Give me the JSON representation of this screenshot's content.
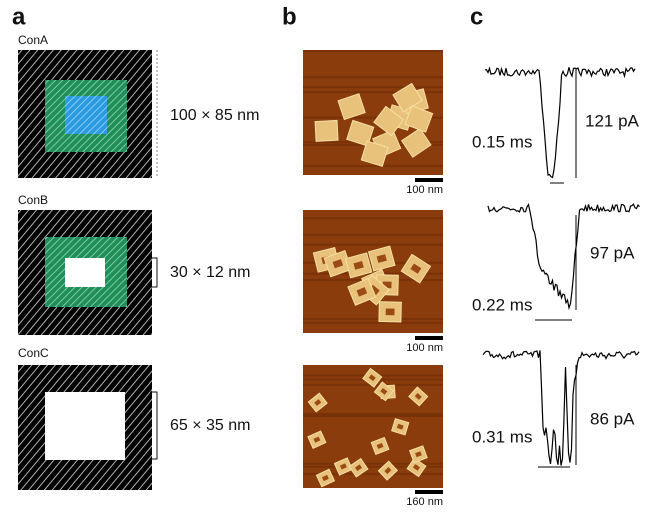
{
  "panels": {
    "a": "a",
    "b": "b",
    "c": "c"
  },
  "rows": [
    {
      "name": "ConA",
      "size": "100 × 85 nm",
      "scale_bar": "100 nm",
      "dwell": "0.15 ms",
      "amplitude": "121 pA"
    },
    {
      "name": "ConB",
      "size": "30 × 12 nm",
      "scale_bar": "100 nm",
      "dwell": "0.22 ms",
      "amplitude": "97 pA"
    },
    {
      "name": "ConC",
      "size": "65 × 35 nm",
      "scale_bar": "160 nm",
      "dwell": "0.31 ms",
      "amplitude": "86 pA"
    }
  ]
}
